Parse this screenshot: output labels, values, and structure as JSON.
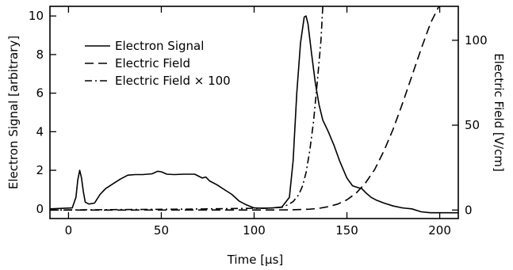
{
  "chart_data": {
    "type": "line",
    "xlabel": "Time [μs]",
    "ylabel_left": "Electron Signal [arbitrary]",
    "ylabel_right": "Electric Field [V/cm]",
    "xlim": [
      -10,
      210
    ],
    "ylim_left": [
      -0.5,
      10.5
    ],
    "ylim_right": [
      -5,
      120
    ],
    "x_ticks": [
      0,
      50,
      100,
      150,
      200
    ],
    "y_left_ticks": [
      0,
      2,
      4,
      6,
      8,
      10
    ],
    "y_right_ticks": [
      0,
      50,
      100
    ],
    "grid": false,
    "legend_position": "top-left",
    "series": [
      {
        "name": "Electron Signal",
        "axis": "left",
        "style": "solid",
        "x": [
          -10,
          2,
          4,
          5,
          6,
          7,
          8,
          9,
          11,
          14,
          17,
          20,
          24,
          28,
          32,
          36,
          40,
          45,
          48,
          50,
          53,
          57,
          62,
          68,
          72,
          74,
          76,
          80,
          84,
          88,
          92,
          96,
          100,
          105,
          110,
          115,
          119,
          121,
          123,
          125,
          127,
          128,
          129,
          131,
          133,
          135,
          137,
          140,
          143,
          146,
          150,
          153,
          156,
          158,
          160,
          163,
          166,
          170,
          175,
          180,
          185,
          190,
          195,
          200,
          210
        ],
        "y": [
          0.0,
          0.05,
          0.6,
          1.5,
          2.0,
          1.6,
          0.9,
          0.35,
          0.25,
          0.3,
          0.75,
          1.05,
          1.3,
          1.55,
          1.75,
          1.78,
          1.78,
          1.82,
          1.95,
          1.92,
          1.8,
          1.78,
          1.8,
          1.8,
          1.6,
          1.65,
          1.45,
          1.25,
          1.0,
          0.75,
          0.4,
          0.2,
          0.05,
          0.03,
          0.05,
          0.1,
          0.6,
          2.5,
          6.0,
          8.6,
          9.95,
          10.0,
          9.6,
          8.0,
          6.5,
          5.4,
          4.6,
          4.0,
          3.3,
          2.5,
          1.6,
          1.2,
          1.1,
          1.05,
          0.85,
          0.6,
          0.45,
          0.3,
          0.15,
          0.05,
          0.0,
          -0.15,
          -0.2,
          -0.2,
          -0.2
        ]
      },
      {
        "name": "Electric Field",
        "axis": "right",
        "style": "dashed",
        "x": [
          -10,
          110,
          120,
          130,
          135,
          140,
          145,
          150,
          155,
          160,
          165,
          170,
          175,
          180,
          185,
          190,
          195,
          200
        ],
        "y": [
          0.0,
          0.05,
          0.15,
          0.5,
          1.0,
          2.0,
          3.5,
          6.0,
          10.0,
          16.0,
          24.0,
          35.0,
          48.0,
          63.0,
          79.0,
          95.0,
          110.0,
          121.0
        ]
      },
      {
        "name": "Electric Field × 100",
        "axis": "right",
        "style": "dashdot",
        "x": [
          -10,
          60,
          100,
          110,
          115,
          118,
          121,
          124,
          126,
          128,
          130,
          132,
          134,
          136,
          137
        ],
        "y": [
          0.0,
          0.5,
          1.0,
          1.2,
          1.6,
          3.0,
          5.0,
          9.0,
          14.0,
          22.0,
          35.0,
          52.0,
          75.0,
          100.0,
          120.0
        ]
      }
    ]
  }
}
